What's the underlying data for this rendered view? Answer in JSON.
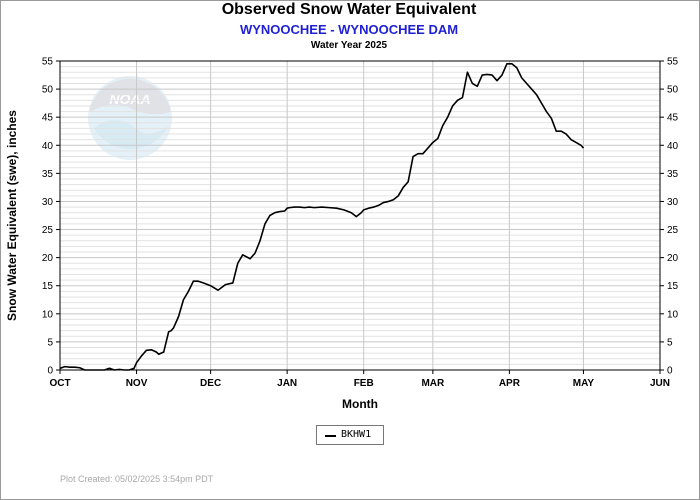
{
  "header": {
    "title": "Observed Snow Water Equivalent",
    "subtitle": "WYNOOCHEE - WYNOOCHEE DAM",
    "water_year": "Water Year 2025"
  },
  "footer": {
    "plot_created": "Plot Created: 05/02/2025 3:54pm PDT"
  },
  "logo": {
    "text": "NOAA",
    "icon": "noaa-logo"
  },
  "chart_data": {
    "type": "line",
    "title": "Observed Snow Water Equivalent",
    "xlabel": "Month",
    "ylabel": "Snow Water Equivalent (swe),  inches",
    "x_ticks": [
      "OCT",
      "NOV",
      "DEC",
      "JAN",
      "FEB",
      "MAR",
      "APR",
      "MAY",
      "JUN"
    ],
    "y_ticks": [
      0,
      5,
      10,
      15,
      20,
      25,
      30,
      35,
      40,
      45,
      50,
      55
    ],
    "xlim": [
      "2024-10-01",
      "2025-06-01"
    ],
    "ylim": [
      0,
      55
    ],
    "minor_grid_step": 1,
    "grid": true,
    "legend_placement": "bottom-center",
    "series": [
      {
        "name": "BKHW1",
        "color": "#000000",
        "x": [
          "2024-10-01",
          "2024-10-03",
          "2024-10-05",
          "2024-10-07",
          "2024-10-09",
          "2024-10-11",
          "2024-10-13",
          "2024-10-15",
          "2024-10-17",
          "2024-10-19",
          "2024-10-21",
          "2024-10-23",
          "2024-10-25",
          "2024-10-27",
          "2024-10-29",
          "2024-10-31",
          "2024-11-01",
          "2024-11-03",
          "2024-11-05",
          "2024-11-07",
          "2024-11-09",
          "2024-11-10",
          "2024-11-12",
          "2024-11-14",
          "2024-11-15",
          "2024-11-16",
          "2024-11-18",
          "2024-11-20",
          "2024-11-22",
          "2024-11-24",
          "2024-11-26",
          "2024-11-28",
          "2024-12-01",
          "2024-12-04",
          "2024-12-07",
          "2024-12-10",
          "2024-12-12",
          "2024-12-14",
          "2024-12-17",
          "2024-12-19",
          "2024-12-21",
          "2024-12-23",
          "2024-12-25",
          "2024-12-27",
          "2024-12-29",
          "2024-12-31",
          "2025-01-01",
          "2025-01-02",
          "2025-01-04",
          "2025-01-06",
          "2025-01-08",
          "2025-01-10",
          "2025-01-12",
          "2025-01-15",
          "2025-01-18",
          "2025-01-21",
          "2025-01-24",
          "2025-01-27",
          "2025-01-29",
          "2025-01-31",
          "2025-02-01",
          "2025-02-03",
          "2025-02-05",
          "2025-02-07",
          "2025-02-09",
          "2025-02-11",
          "2025-02-13",
          "2025-02-15",
          "2025-02-17",
          "2025-02-19",
          "2025-02-21",
          "2025-02-23",
          "2025-02-25",
          "2025-02-27",
          "2025-03-01",
          "2025-03-03",
          "2025-03-05",
          "2025-03-07",
          "2025-03-09",
          "2025-03-11",
          "2025-03-13",
          "2025-03-15",
          "2025-03-17",
          "2025-03-19",
          "2025-03-21",
          "2025-03-23",
          "2025-03-25",
          "2025-03-27",
          "2025-03-29",
          "2025-03-31",
          "2025-04-02",
          "2025-04-04",
          "2025-04-06",
          "2025-04-08",
          "2025-04-10",
          "2025-04-12",
          "2025-04-14",
          "2025-04-16",
          "2025-04-18",
          "2025-04-20",
          "2025-04-22",
          "2025-04-24",
          "2025-04-26",
          "2025-04-28",
          "2025-04-30",
          "2025-05-01"
        ],
        "values": [
          0.3,
          0.6,
          0.5,
          0.5,
          0.4,
          0.0,
          0.0,
          0.0,
          0.0,
          0.0,
          0.3,
          0.0,
          0.1,
          0.0,
          0.0,
          0.3,
          1.3,
          2.5,
          3.5,
          3.6,
          3.2,
          2.8,
          3.2,
          6.8,
          7.0,
          7.5,
          9.5,
          12.5,
          14.0,
          15.8,
          15.8,
          15.5,
          15.0,
          14.2,
          15.2,
          15.5,
          19.0,
          20.5,
          19.8,
          20.8,
          23.0,
          26.0,
          27.5,
          28.0,
          28.2,
          28.3,
          28.8,
          28.9,
          29.0,
          29.0,
          28.9,
          29.0,
          28.9,
          29.0,
          28.9,
          28.8,
          28.5,
          28.0,
          27.3,
          28.0,
          28.5,
          28.8,
          29.0,
          29.3,
          29.8,
          30.0,
          30.3,
          31.0,
          32.5,
          33.5,
          38.0,
          38.5,
          38.5,
          39.5,
          40.5,
          41.2,
          43.5,
          45.0,
          47.0,
          48.0,
          48.5,
          53.0,
          51.0,
          50.5,
          52.5,
          52.6,
          52.5,
          51.5,
          52.5,
          54.5,
          54.5,
          53.8,
          52.0,
          51.0,
          50.0,
          49.0,
          47.5,
          46.0,
          44.8,
          42.5,
          42.5,
          42.0,
          41.0,
          40.5,
          40.0,
          39.5
        ]
      }
    ]
  }
}
